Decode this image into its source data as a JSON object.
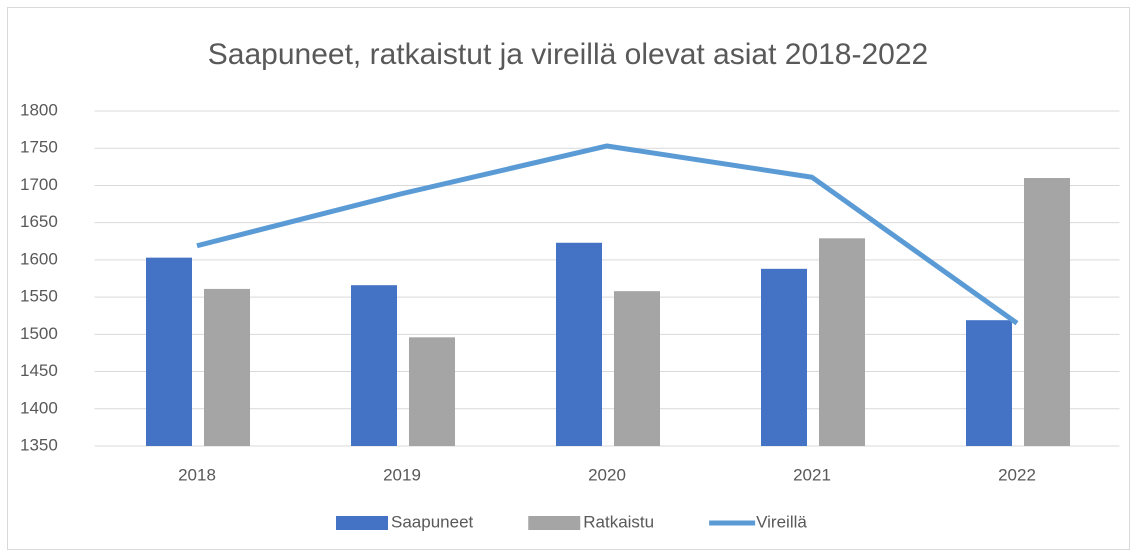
{
  "chart_data": {
    "type": "bar",
    "title": "Saapuneet, ratkaistut ja vireillä olevat asiat 2018-2022",
    "categories": [
      "2018",
      "2019",
      "2020",
      "2021",
      "2022"
    ],
    "series": [
      {
        "name": "Saapuneet",
        "color": "#4472c4",
        "type": "bar",
        "values": [
          1603,
          1566,
          1623,
          1588,
          1519
        ]
      },
      {
        "name": "Ratkaistu",
        "color": "#a5a5a5",
        "type": "bar",
        "values": [
          1561,
          1496,
          1558,
          1629,
          1710
        ]
      },
      {
        "name": "Vireillä",
        "color": "#5b9bd5",
        "type": "line",
        "values": [
          1619,
          1689,
          1753,
          1711,
          1515
        ]
      }
    ],
    "ylim": [
      1350,
      1800
    ],
    "yticks": [
      1350,
      1400,
      1450,
      1500,
      1550,
      1600,
      1650,
      1700,
      1750,
      1800
    ],
    "grid": true,
    "legend": "bottom"
  }
}
